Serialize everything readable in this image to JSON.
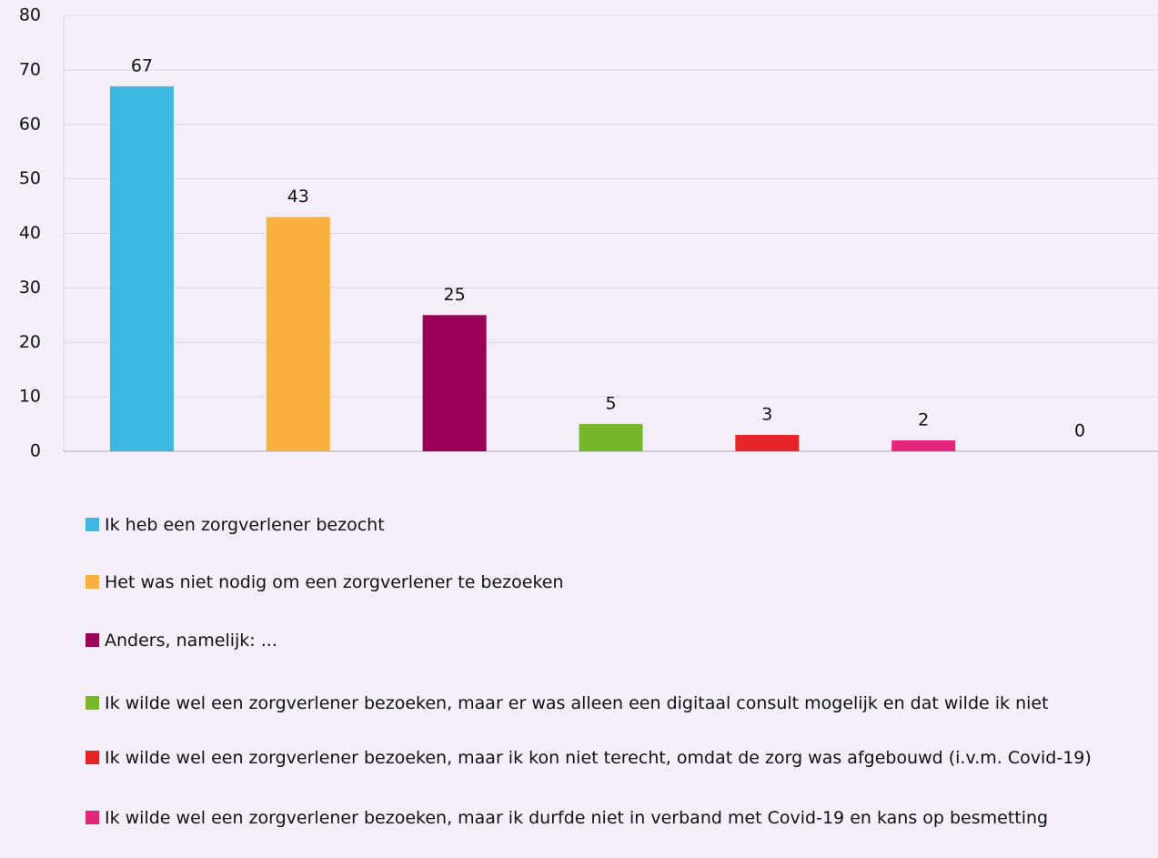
{
  "chart_data": {
    "type": "bar",
    "categories": [
      "Ik heb een zorgverlener bezocht",
      "Het was niet nodig om een zorgverlener te bezoeken",
      "Anders, namelijk: ...",
      "Ik wilde wel een zorgverlener bezoeken, maar er was alleen een digitaal consult mogelijk en dat wilde ik niet",
      "Ik wilde wel een zorgverlener bezoeken, maar ik kon niet terecht, omdat de zorg was afgebouwd (i.v.m. Covid-19)",
      "Ik wilde wel een zorgverlener bezoeken, maar ik durfde niet in verband met Covid-19 en kans op besmetting",
      null
    ],
    "values": [
      67,
      43,
      25,
      5,
      3,
      2,
      0
    ],
    "colors": [
      "#3db8e0",
      "#f9b03f",
      "#9b0059",
      "#76b82a",
      "#e52328",
      "#e6267a",
      null
    ],
    "ylim": [
      0,
      80
    ],
    "yticks": [
      0,
      10,
      20,
      30,
      40,
      50,
      60,
      70,
      80
    ],
    "grid": true
  }
}
